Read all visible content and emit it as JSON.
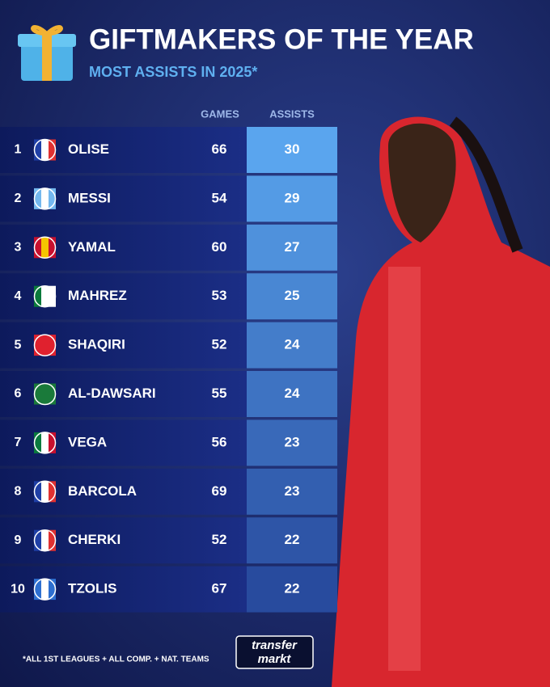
{
  "header": {
    "title": "GIFTMAKERS OF THE YEAR",
    "subtitle": "MOST ASSISTS IN 2025*"
  },
  "table": {
    "columns": [
      "GAMES",
      "ASSISTS"
    ],
    "rows": [
      {
        "rank": 1,
        "player": "OLISE",
        "games": 66,
        "assists": 30
      },
      {
        "rank": 2,
        "player": "MESSI",
        "games": 54,
        "assists": 29
      },
      {
        "rank": 3,
        "player": "YAMAL",
        "games": 60,
        "assists": 27
      },
      {
        "rank": 4,
        "player": "MAHREZ",
        "games": 53,
        "assists": 25
      },
      {
        "rank": 5,
        "player": "SHAQIRI",
        "games": 52,
        "assists": 24
      },
      {
        "rank": 6,
        "player": "AL-DAWSARI",
        "games": 55,
        "assists": 24
      },
      {
        "rank": 7,
        "player": "VEGA",
        "games": 56,
        "assists": 23
      },
      {
        "rank": 8,
        "player": "BARCOLA",
        "games": 69,
        "assists": 23
      },
      {
        "rank": 9,
        "player": "CHERKI",
        "games": 52,
        "assists": 22
      },
      {
        "rank": 10,
        "player": "TZOLIS",
        "games": 67,
        "assists": 22
      }
    ]
  },
  "footer": {
    "note": "*ALL 1ST LEAGUES + ALL COMP. + NAT. TEAMS",
    "logo": [
      "transfer",
      "markt"
    ]
  }
}
